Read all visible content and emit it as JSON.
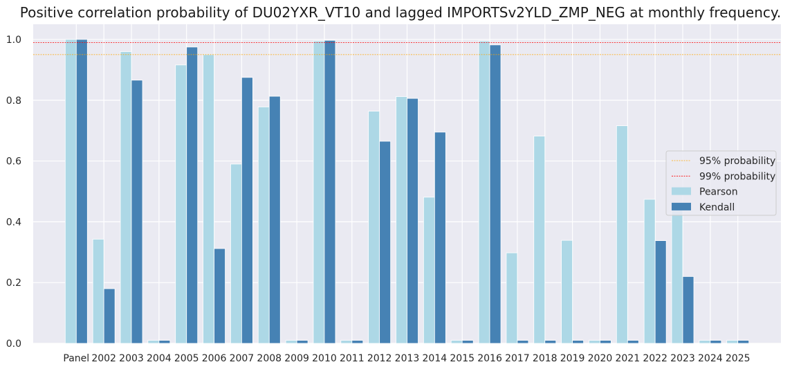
{
  "chart_data": {
    "type": "bar",
    "title": "Positive correlation probability of DU02YXR_VT10 and lagged IMPORTSv2YLD_ZMP_NEG at monthly frequency.",
    "xlabel": "",
    "ylabel": "",
    "ylim": [
      0,
      1.05
    ],
    "yticks": [
      "0.0",
      "0.2",
      "0.4",
      "0.6",
      "0.8",
      "1.0"
    ],
    "categories": [
      "Panel",
      "2002",
      "2003",
      "2004",
      "2005",
      "2006",
      "2007",
      "2008",
      "2009",
      "2010",
      "2011",
      "2012",
      "2013",
      "2014",
      "2015",
      "2016",
      "2017",
      "2018",
      "2019",
      "2020",
      "2021",
      "2022",
      "2023",
      "2024",
      "2025"
    ],
    "series": [
      {
        "name": "Pearson",
        "color": "#add8e6",
        "values": [
          1.0,
          0.343,
          0.96,
          0.01,
          0.916,
          0.95,
          0.59,
          0.778,
          0.01,
          0.995,
          0.01,
          0.764,
          0.812,
          0.481,
          0.01,
          0.995,
          0.298,
          0.682,
          0.339,
          0.01,
          0.716,
          0.474,
          0.455,
          0.01,
          0.01
        ]
      },
      {
        "name": "Kendall",
        "color": "#4682b4",
        "values": [
          1.0,
          0.18,
          0.866,
          0.01,
          0.975,
          0.312,
          0.875,
          0.813,
          0.01,
          0.997,
          0.01,
          0.665,
          0.806,
          0.695,
          0.01,
          0.982,
          0.01,
          0.01,
          0.01,
          0.01,
          0.01,
          0.338,
          0.22,
          0.01,
          0.01
        ]
      }
    ],
    "reference_lines": [
      {
        "name": "95% probability",
        "value": 0.95,
        "color": "#ffa500"
      },
      {
        "name": "99% probability",
        "value": 0.99,
        "color": "#ff0000"
      }
    ],
    "legend_position": "center-right",
    "legend_entries": [
      "95% probability",
      "99% probability",
      "Pearson",
      "Kendall"
    ],
    "grid": true,
    "background_color": "#eaeaf2"
  }
}
